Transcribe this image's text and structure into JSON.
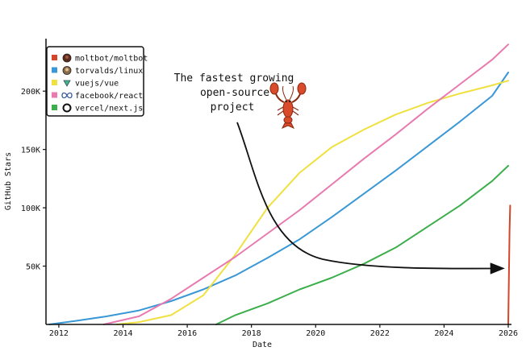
{
  "chart_data": {
    "type": "line",
    "xlabel": "Date",
    "ylabel": "GitHub Stars",
    "xlim": [
      2011.6,
      2026.1
    ],
    "ylim": [
      0,
      245000
    ],
    "x_ticks": [
      2012,
      2014,
      2016,
      2018,
      2020,
      2022,
      2024,
      2026
    ],
    "y_ticks": [
      50000,
      100000,
      150000,
      200000
    ],
    "y_tick_labels": [
      "50K",
      "100K",
      "150K",
      "200K"
    ],
    "grid": false,
    "legend_placement": "top-left",
    "annotation": {
      "lines": [
        "The fastest growing",
        "open-source",
        "project"
      ],
      "icon": "lobster-icon",
      "arrow_target": [
        2025.8,
        48000
      ]
    },
    "series": [
      {
        "name": "moltbot/moltbot",
        "color": "#d4452a",
        "marker": "avatar",
        "x": [
          2026.0,
          2026.02,
          2026.04,
          2026.06
        ],
        "y": [
          0,
          40000,
          80000,
          102000
        ]
      },
      {
        "name": "torvalds/linux",
        "color": "#3a98d6",
        "marker": "avatar",
        "x": [
          2011.7,
          2012.5,
          2013.5,
          2014.5,
          2015.5,
          2016.5,
          2017.5,
          2018.5,
          2019.5,
          2020.5,
          2021.5,
          2022.5,
          2023.5,
          2024.5,
          2025.5,
          2026.0
        ],
        "y": [
          0,
          3000,
          7000,
          12000,
          20000,
          30000,
          42000,
          57000,
          73000,
          92000,
          112000,
          132000,
          153000,
          174000,
          196000,
          216000
        ]
      },
      {
        "name": "vuejs/vue",
        "color": "#f0e040",
        "marker": "triangle-down",
        "x": [
          2013.8,
          2014.5,
          2015.5,
          2016.5,
          2017.5,
          2018.5,
          2019.5,
          2020.5,
          2021.5,
          2022.5,
          2023.5,
          2024.5,
          2025.5,
          2026.0
        ],
        "y": [
          0,
          2000,
          8000,
          25000,
          60000,
          100000,
          130000,
          152000,
          167000,
          180000,
          190000,
          198000,
          205000,
          209000
        ]
      },
      {
        "name": "facebook/react",
        "color": "#e87ab0",
        "marker": "infinity",
        "x": [
          2013.4,
          2014.5,
          2015.5,
          2016.5,
          2017.5,
          2018.5,
          2019.5,
          2020.5,
          2021.5,
          2022.5,
          2023.5,
          2024.5,
          2025.5,
          2026.0
        ],
        "y": [
          0,
          7000,
          22000,
          40000,
          58000,
          78000,
          98000,
          120000,
          142000,
          163000,
          185000,
          206000,
          227000,
          240000
        ]
      },
      {
        "name": "vercel/next.js",
        "color": "#3cae4c",
        "marker": "circle",
        "x": [
          2016.9,
          2017.5,
          2018.5,
          2019.5,
          2020.5,
          2021.5,
          2022.5,
          2023.5,
          2024.5,
          2025.5,
          2026.0
        ],
        "y": [
          0,
          8000,
          18000,
          30000,
          40000,
          52000,
          66000,
          84000,
          102000,
          123000,
          136000
        ]
      }
    ]
  }
}
